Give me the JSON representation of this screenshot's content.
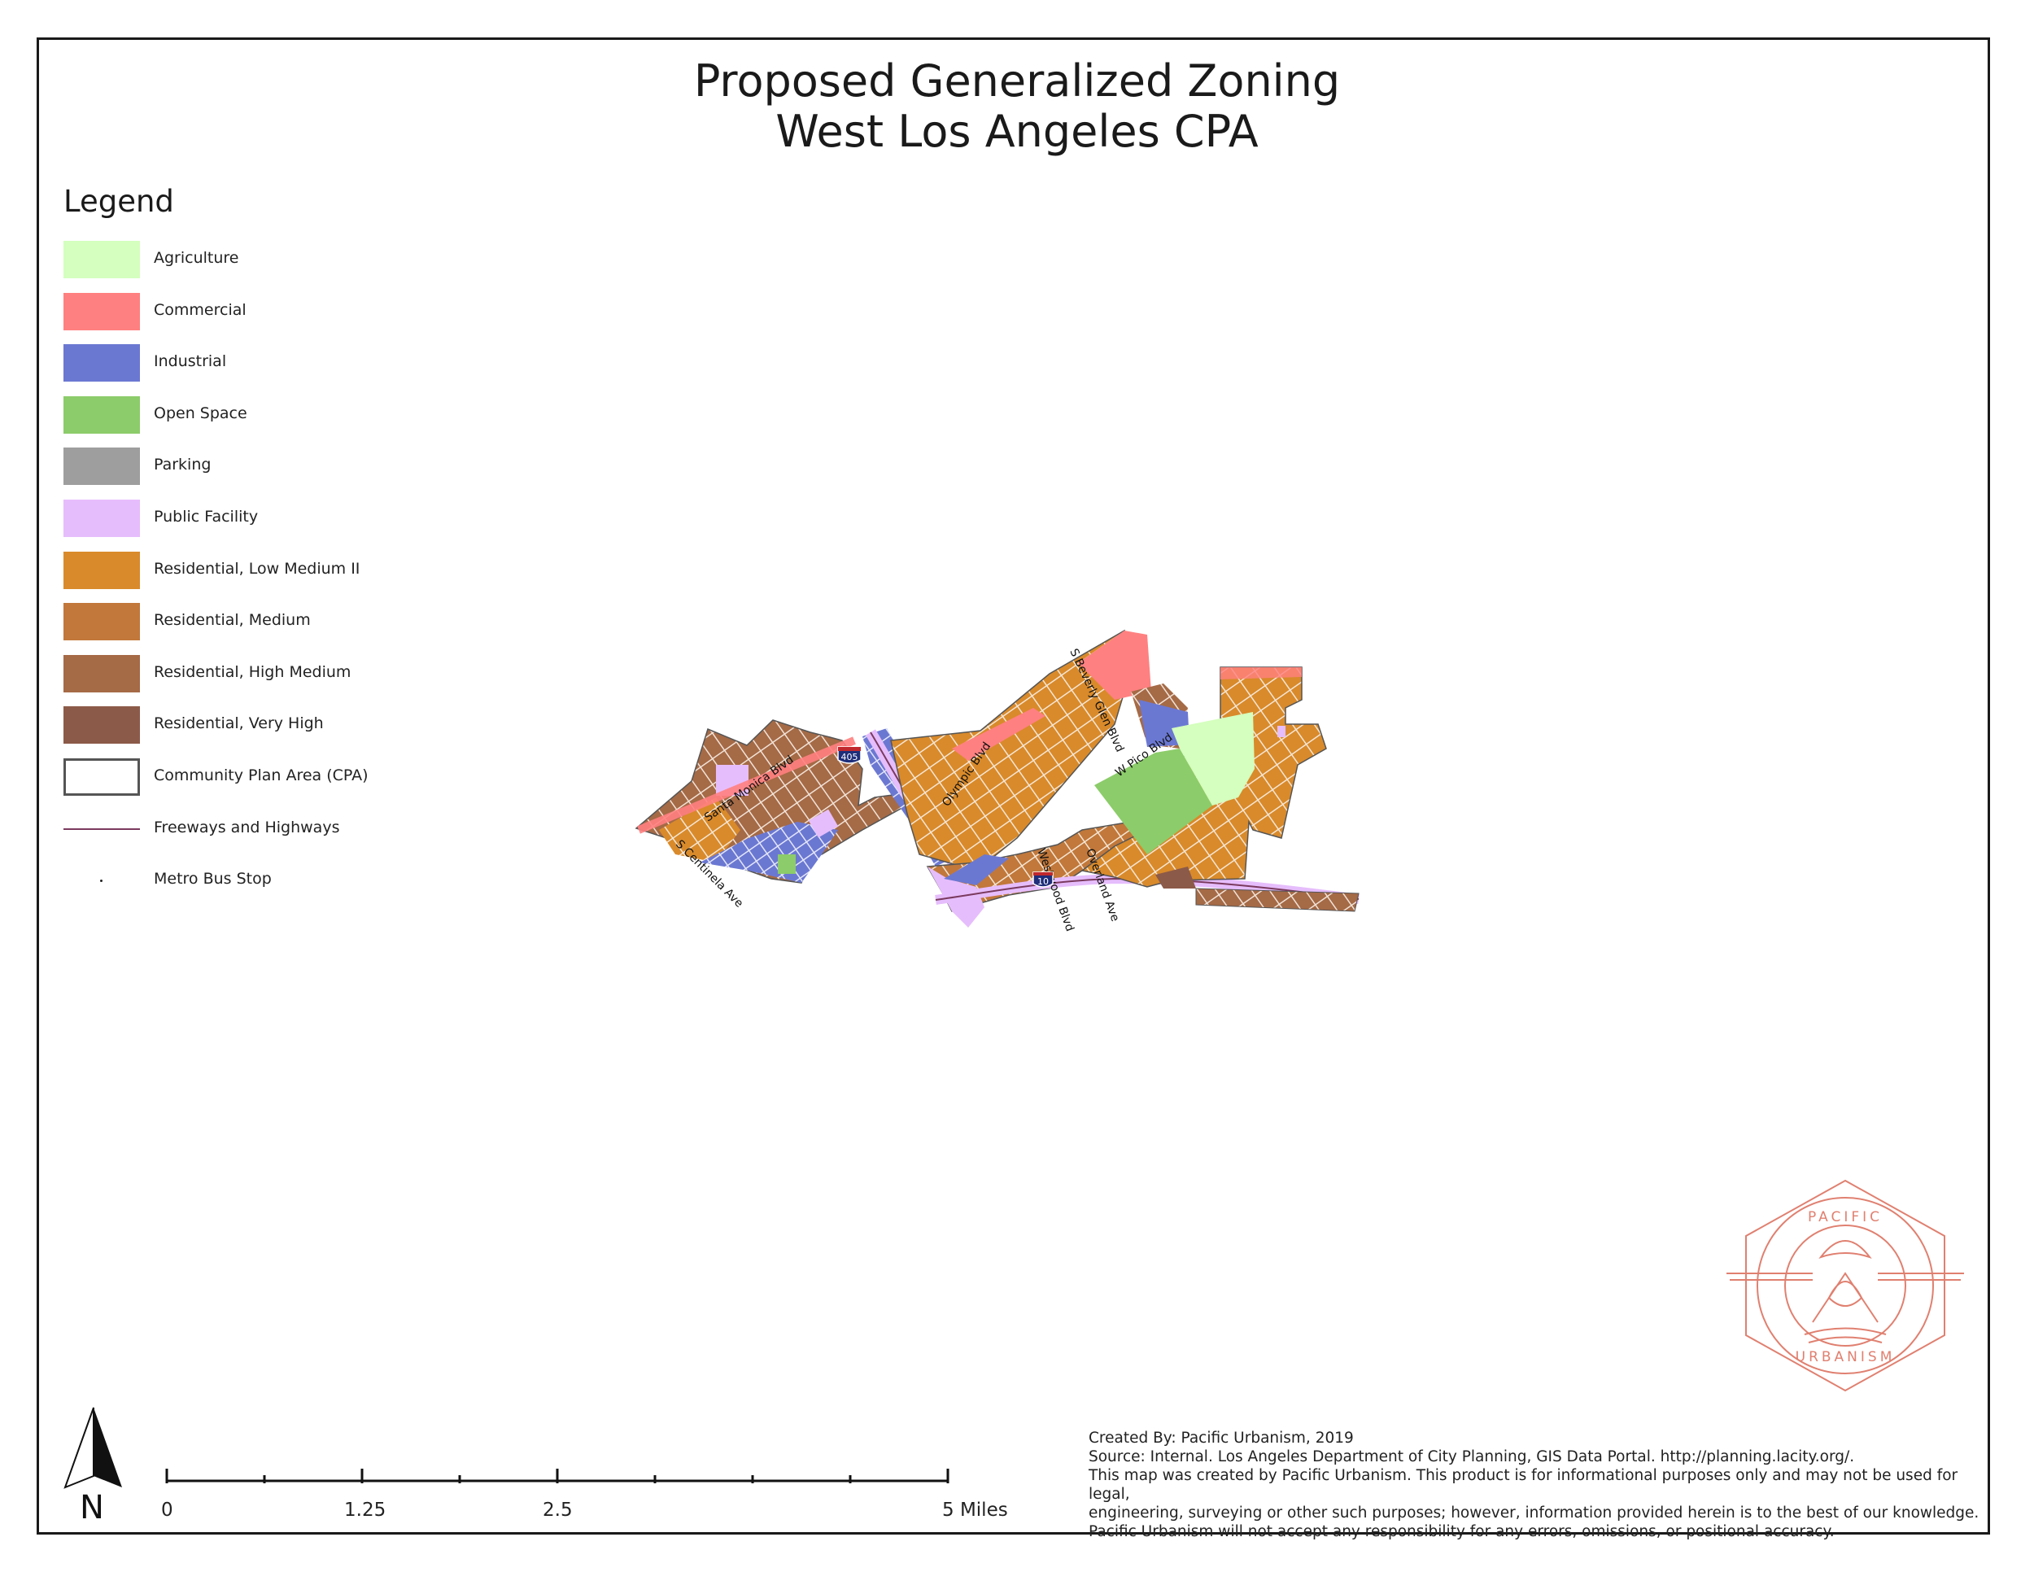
{
  "title": {
    "line1": "Proposed Generalized Zoning",
    "line2": "West Los Angeles CPA"
  },
  "legend": {
    "heading": "Legend",
    "items": [
      {
        "label": "Agriculture",
        "color": "#d4ffbe",
        "kind": "fill"
      },
      {
        "label": "Commercial",
        "color": "#ff8080",
        "kind": "fill"
      },
      {
        "label": "Industrial",
        "color": "#6b78d2",
        "kind": "fill"
      },
      {
        "label": "Open Space",
        "color": "#8ccc6a",
        "kind": "fill"
      },
      {
        "label": "Parking",
        "color": "#9e9e9e",
        "kind": "fill"
      },
      {
        "label": "Public Facility",
        "color": "#e6bdfc",
        "kind": "fill"
      },
      {
        "label": "Residential, Low Medium II",
        "color": "#d98a2a",
        "kind": "fill"
      },
      {
        "label": "Residential, Medium",
        "color": "#c1783a",
        "kind": "fill"
      },
      {
        "label": "Residential, High Medium",
        "color": "#a56a46",
        "kind": "fill"
      },
      {
        "label": "Residential, Very High",
        "color": "#8c5a48",
        "kind": "fill"
      },
      {
        "label": "Community Plan Area (CPA)",
        "color": "#555555",
        "kind": "outline"
      },
      {
        "label": "Freeways and Highways",
        "color": "#7a3a5e",
        "kind": "line"
      },
      {
        "label": "Metro Bus Stop",
        "color": "#222222",
        "kind": "dot"
      }
    ]
  },
  "map": {
    "street_labels": [
      "Santa Monica Blvd",
      "S Centinela Ave",
      "Olympic Blvd",
      "Westwood Blvd",
      "Overland Ave",
      "S Beverly Glen Blvd",
      "W Pico Blvd"
    ],
    "shields": [
      "405",
      "10"
    ]
  },
  "north_arrow": {
    "label": "N"
  },
  "scale_bar": {
    "labels": [
      "0",
      "1.25",
      "2.5",
      "5 Miles"
    ],
    "max_miles": 5
  },
  "credits": {
    "lines": [
      "Created By: Pacific Urbanism, 2019",
      "Source: Internal. Los Angeles Department of City Planning, GIS Data Portal. http://planning.lacity.org/.",
      "This map was created by Pacific Urbanism. This product is for informational purposes only and may not be used for legal,",
      "engineering, surveying or other such purposes; however, information provided herein is to the best of our knowledge.",
      "Pacific Urbanism will not accept any responsibility for any errors, omissions, or positional accuracy."
    ]
  },
  "logo": {
    "top_text": "PACIFIC",
    "bottom_text": "URBANISM",
    "color": "#e08070"
  }
}
